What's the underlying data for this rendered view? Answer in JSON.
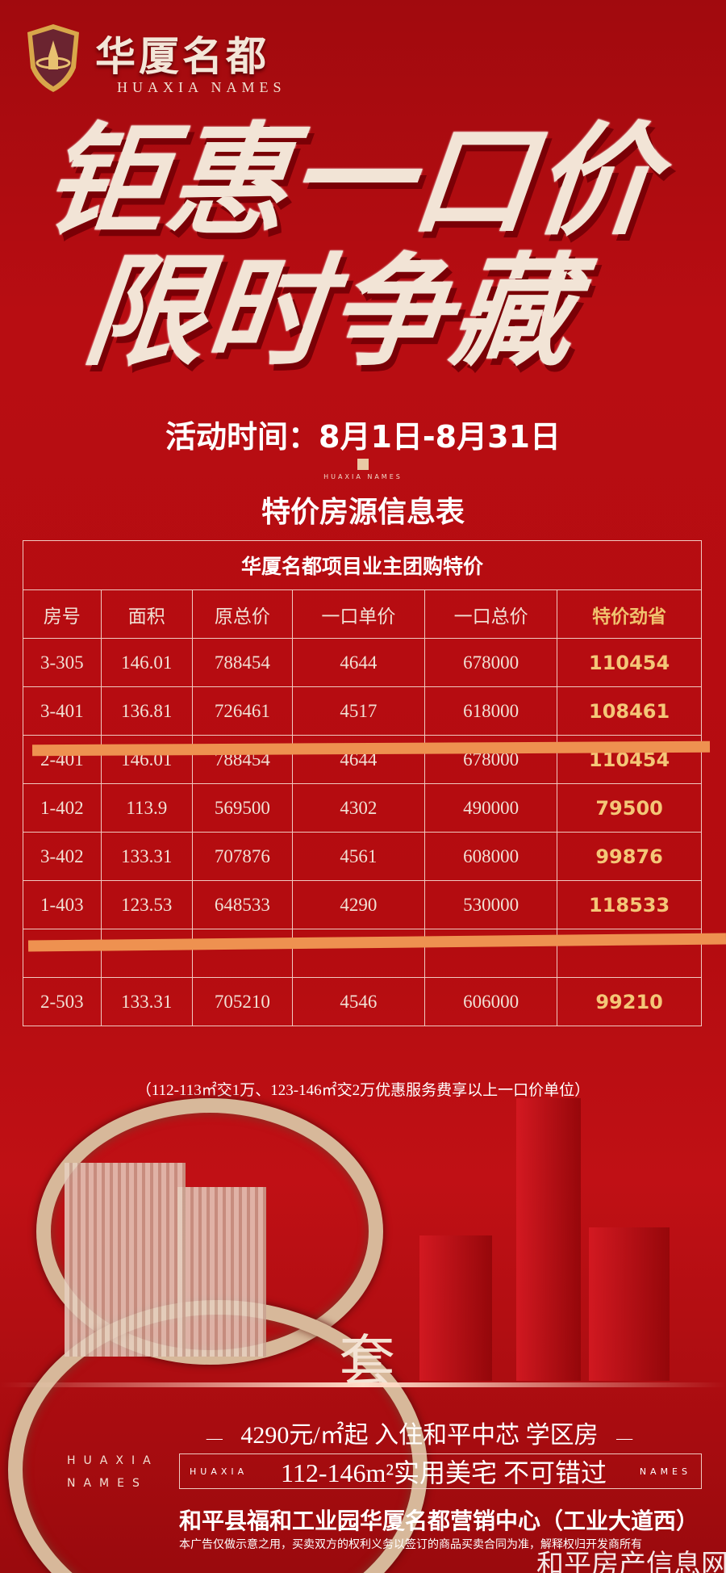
{
  "brand": {
    "name_cn": "华厦名都",
    "name_en": "HUAXIA NAMES"
  },
  "headline": {
    "line1": "钜惠一口价",
    "line2": "限时争藏"
  },
  "period": "活动时间：8月1日-8月31日",
  "mini_logo": "HUAXIA NAMES",
  "subtitle": "特价房源信息表",
  "table": {
    "caption": "华厦名都项目业主团购特价",
    "headers": [
      "房号",
      "面积",
      "原总价",
      "一口单价",
      "一口总价",
      "特价劲省"
    ],
    "rows": [
      [
        "3-305",
        "146.01",
        "788454",
        "4644",
        "678000",
        "110454"
      ],
      [
        "3-401",
        "136.81",
        "726461",
        "4517",
        "618000",
        "108461"
      ],
      [
        "2-401",
        "146.01",
        "788454",
        "4644",
        "678000",
        "110454"
      ],
      [
        "1-402",
        "113.9",
        "569500",
        "4302",
        "490000",
        "79500"
      ],
      [
        "3-402",
        "133.31",
        "707876",
        "4561",
        "608000",
        "99876"
      ],
      [
        "1-403",
        "123.53",
        "648533",
        "4290",
        "530000",
        "118533"
      ],
      [
        "",
        "",
        "",
        "",
        "",
        ""
      ],
      [
        "2-503",
        "133.31",
        "705210",
        "4546",
        "606000",
        "99210"
      ]
    ]
  },
  "note": "（112-113㎡交1万、123-146㎡交2万优惠服务费享以上一口价单位）",
  "tao": "套",
  "slogan": "4290元/㎡起 入住和平中芯  学区房",
  "box": {
    "left": "HUAXIA",
    "main": "112-146m²实用美宅   不可错过",
    "right": "NAMES"
  },
  "side_en": [
    "HUAXIA",
    "NAMES"
  ],
  "address": "和平县福和工业园华厦名都营销中心（工业大道西）",
  "disclaimer": "本广告仅做示意之用，买卖双方的权利义务以签订的商品买卖合同为准，解释权归开发商所有",
  "watermark": "和平房产信息网",
  "colors": {
    "background": "#b40c10",
    "accent_gold": "#f4c677",
    "strike": "#ee9150"
  }
}
